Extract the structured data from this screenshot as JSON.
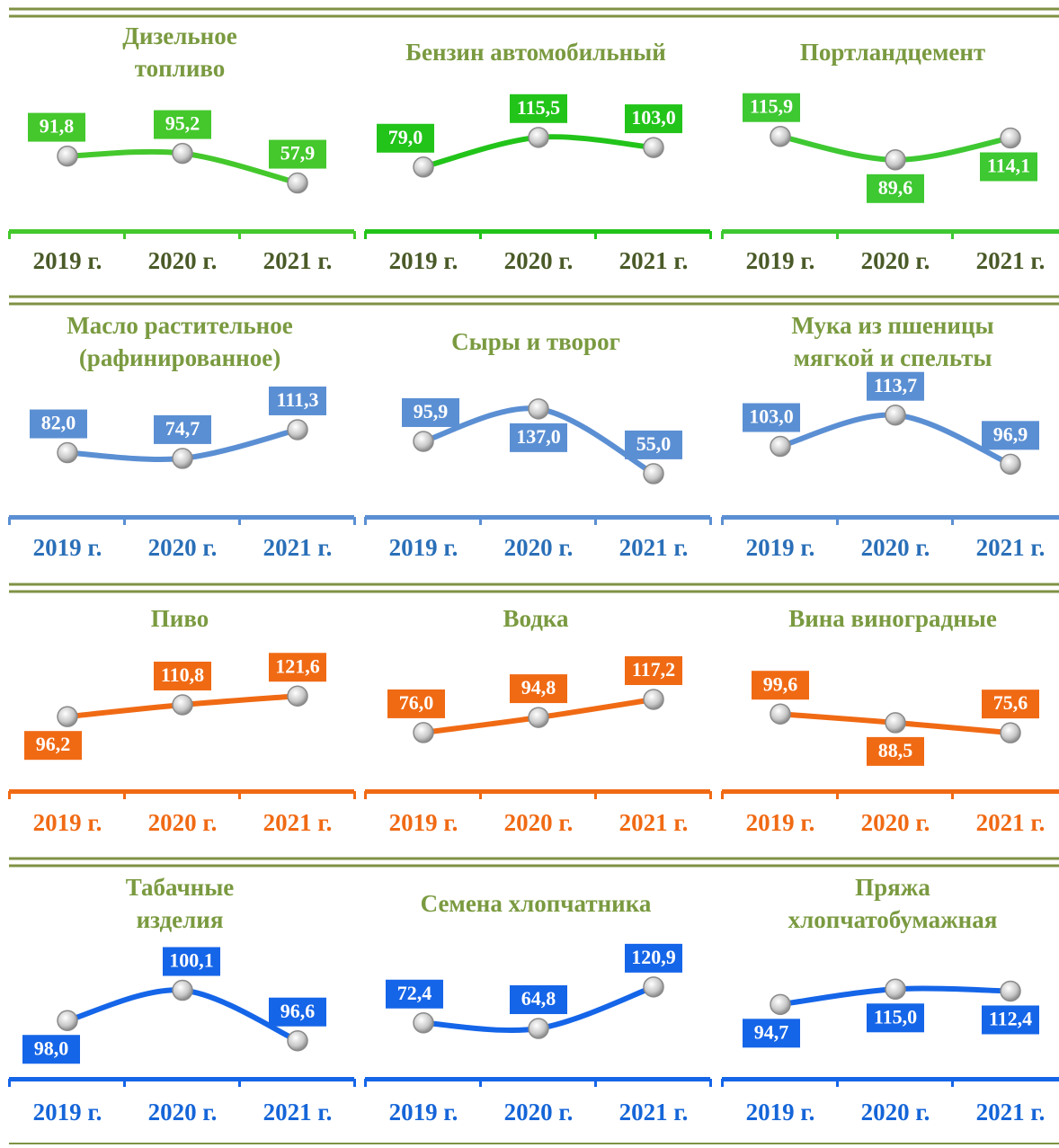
{
  "chart_data": [
    {
      "type": "line",
      "title": "Дизельное\nтопливо",
      "categories": [
        "2019 г.",
        "2020 г.",
        "2021 г."
      ],
      "values": [
        91.8,
        95.2,
        57.9
      ],
      "value_labels": [
        "91,8",
        "95,2",
        "57,9"
      ],
      "color": "#44c82c",
      "ylim": [
        28,
        175
      ]
    },
    {
      "type": "line",
      "title": "Бензин автомобильный",
      "categories": [
        "2019 г.",
        "2020 г.",
        "2021 г."
      ],
      "values": [
        79.0,
        115.5,
        103.0
      ],
      "value_labels": [
        "79,0",
        "115,5",
        "103,0"
      ],
      "color": "#22c41a",
      "ylim": [
        30,
        174
      ]
    },
    {
      "type": "line",
      "title": "Портландцемент",
      "categories": [
        "2019 г.",
        "2020 г.",
        "2021 г."
      ],
      "values": [
        115.9,
        89.6,
        114.1
      ],
      "value_labels": [
        "115,9",
        "89,6",
        "114,1"
      ],
      "color": "#3ec832",
      "ylim": [
        37,
        168
      ]
    },
    {
      "type": "line",
      "title": "Масло растительное\n(рафинированное)",
      "categories": [
        "2019 г.",
        "2020 г.",
        "2021 г."
      ],
      "values": [
        82.0,
        74.7,
        111.3
      ],
      "value_labels": [
        "82,0",
        "74,7",
        "111,3"
      ],
      "color": "#5b8fd3",
      "ylim": [
        23,
        172
      ]
    },
    {
      "type": "line",
      "title": "Сыры и творог",
      "categories": [
        "2019 г.",
        "2020 г.",
        "2021 г."
      ],
      "values": [
        95.9,
        137.0,
        55.0
      ],
      "value_labels": [
        "95,9",
        "137,0",
        "55,0"
      ],
      "color": "#5b8fd3",
      "ylim": [
        23,
        171
      ]
    },
    {
      "type": "line",
      "title": "Мука из пшеницы\nмягкой и спельты",
      "categories": [
        "2019 г.",
        "2020 г.",
        "2021 г."
      ],
      "values": [
        103.0,
        113.7,
        96.9
      ],
      "value_labels": [
        "103,0",
        "113,7",
        "96,9"
      ],
      "color": "#5b8fd3",
      "ylim": [
        85,
        125
      ]
    },
    {
      "type": "line",
      "title": "Пиво",
      "categories": [
        "2019 г.",
        "2020 г.",
        "2021 г."
      ],
      "values": [
        96.2,
        110.8,
        121.6
      ],
      "value_labels": [
        "96,2",
        "110,8",
        "121,6"
      ],
      "color": "#f06a14",
      "ylim": [
        10,
        154
      ]
    },
    {
      "type": "line",
      "title": "Водка",
      "categories": [
        "2019 г.",
        "2020 г.",
        "2021 г."
      ],
      "values": [
        76.0,
        94.8,
        117.2
      ],
      "value_labels": [
        "76,0",
        "94,8",
        "117,2"
      ],
      "color": "#f06a14",
      "ylim": [
        9,
        154
      ]
    },
    {
      "type": "line",
      "title": "Вина виноградные",
      "categories": [
        "2019 г.",
        "2020 г.",
        "2021 г."
      ],
      "values": [
        99.6,
        88.5,
        75.6
      ],
      "value_labels": [
        "99,6",
        "88,5",
        "75,6"
      ],
      "color": "#f06a14",
      "ylim": [
        7,
        156
      ]
    },
    {
      "type": "line",
      "title": "Табачные\nизделия",
      "categories": [
        "2019 г.",
        "2020 г.",
        "2021 г."
      ],
      "values": [
        98.0,
        100.1,
        96.6
      ],
      "value_labels": [
        "98,0",
        "100,1",
        "96,6"
      ],
      "color": "#1565e8",
      "ylim": [
        94.9,
        103
      ]
    },
    {
      "type": "line",
      "title": "Семена хлопчатника",
      "categories": [
        "2019 г.",
        "2020 г.",
        "2021 г."
      ],
      "values": [
        72.4,
        64.8,
        120.9
      ],
      "value_labels": [
        "72,4",
        "64,8",
        "120,9"
      ],
      "color": "#1565e8",
      "ylim": [
        15,
        173
      ]
    },
    {
      "type": "line",
      "title": "Пряжа\nхлопчатобумажная",
      "categories": [
        "2019 г.",
        "2020 г.",
        "2021 г."
      ],
      "values": [
        94.7,
        115.0,
        112.4
      ],
      "value_labels": [
        "94,7",
        "115,0",
        "112,4"
      ],
      "color": "#1565e8",
      "ylim": [
        14,
        169
      ]
    }
  ]
}
